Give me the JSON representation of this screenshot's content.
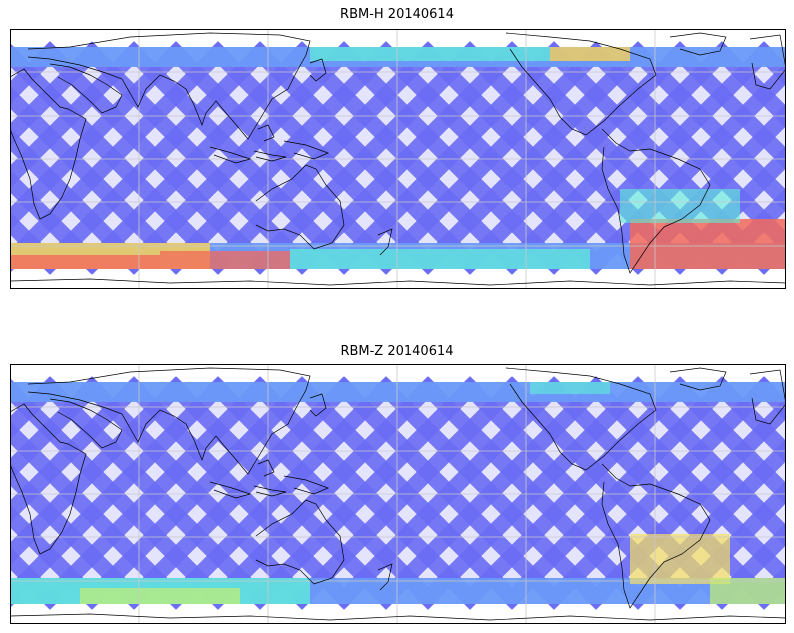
{
  "panels": [
    {
      "title": "RBM-H 20140614",
      "colors": {
        "swath": "#6a6cf5",
        "high_lat": "#6a9af8",
        "hotspot_warm": "#f26a5a",
        "hotspot_mid": "#f6d05a",
        "hotspot_cool": "#5ef0d8"
      }
    },
    {
      "title": "RBM-Z 20140614",
      "colors": {
        "swath": "#6a6cf5",
        "high_lat": "#6a9af8",
        "hotspot_warm": "#f6e060",
        "hotspot_mid": "#c4f070",
        "hotspot_cool": "#5ef0d8"
      }
    }
  ],
  "map_style": {
    "frame_color": "#000000",
    "grid_color": "#c8c8c8",
    "coast_color": "#000000",
    "grid": true
  }
}
